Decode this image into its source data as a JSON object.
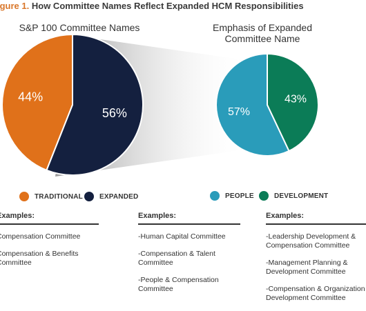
{
  "figure": {
    "label": "igure 1.",
    "title": "How Committee Names Reflect Expanded HCM Responsibilities"
  },
  "chart_data": [
    {
      "type": "pie",
      "title": "S&P 100 Committee Names",
      "slices": [
        {
          "name": "TRADITIONAL",
          "value": 44,
          "label": "44%",
          "color": "#e0711a"
        },
        {
          "name": "EXPANDED",
          "value": 56,
          "label": "56%",
          "color": "#14203f"
        }
      ]
    },
    {
      "type": "pie",
      "title": "Emphasis of Expanded Committee Name",
      "slices": [
        {
          "name": "PEOPLE",
          "value": 57,
          "label": "57%",
          "color": "#2a9cba"
        },
        {
          "name": "DEVELOPMENT",
          "value": 43,
          "label": "43%",
          "color": "#0b7c57"
        }
      ]
    }
  ],
  "examples": [
    {
      "heading": "Examples:",
      "accent": "#e0711a",
      "items": [
        "Compensation Committee",
        "Compensation & Benefits\nCommittee"
      ]
    },
    {
      "heading": "Examples:",
      "accent": "#2a9cba",
      "items": [
        "-Human Capital Committee",
        "-Compensation & Talent\nCommittee",
        "-People & Compensation\nCommittee"
      ]
    },
    {
      "heading": "Examples:",
      "accent": "#2a9cba",
      "items": [
        "-Leadership Development &\nCompensation Committee",
        "-Management Planning &\nDevelopment Committee",
        "-Compensation & Organization\nDevelopment Committee"
      ]
    }
  ]
}
